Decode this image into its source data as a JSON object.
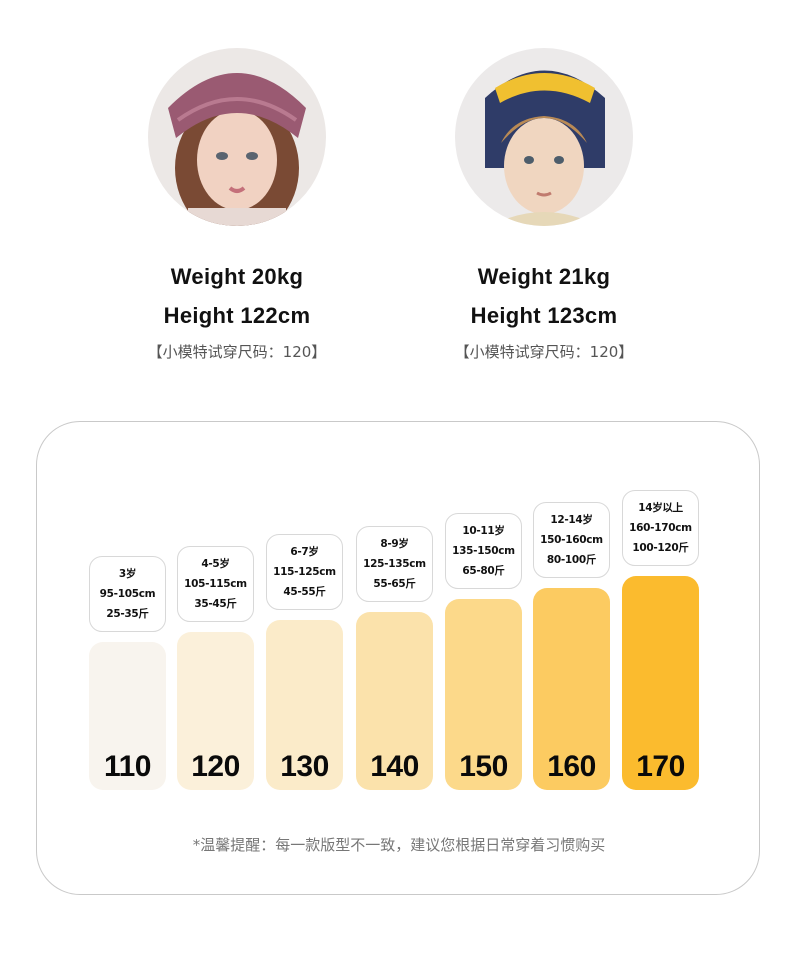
{
  "models": [
    {
      "weight": "Weight  20kg",
      "height": "Height  122cm",
      "fit_size": "【小模特试穿尺码：120】"
    },
    {
      "weight": "Weight  21kg",
      "height": "Height  123cm",
      "fit_size": "【小模特试穿尺码：120】"
    }
  ],
  "size_chart": {
    "sizes": [
      {
        "label": "110",
        "age": "3岁",
        "height_range": "95-105cm",
        "weight_range": "25-35斤",
        "color": "#f8f4ee"
      },
      {
        "label": "120",
        "age": "4-5岁",
        "height_range": "105-115cm",
        "weight_range": "35-45斤",
        "color": "#fbf0da"
      },
      {
        "label": "130",
        "age": "6-7岁",
        "height_range": "115-125cm",
        "weight_range": "45-55斤",
        "color": "#fbebc9"
      },
      {
        "label": "140",
        "age": "8-9岁",
        "height_range": "125-135cm",
        "weight_range": "55-65斤",
        "color": "#fbe2ab"
      },
      {
        "label": "150",
        "age": "10-11岁",
        "height_range": "135-150cm",
        "weight_range": "65-80斤",
        "color": "#fcd98a"
      },
      {
        "label": "160",
        "age": "12-14岁",
        "height_range": "150-160cm",
        "weight_range": "80-100斤",
        "color": "#fccb61"
      },
      {
        "label": "170",
        "age": "14岁以上",
        "height_range": "160-170cm",
        "weight_range": "100-120斤",
        "color": "#fbbb2e"
      }
    ],
    "note": "*温馨提醒：每一款版型不一致，建议您根据日常穿着习惯购买"
  }
}
